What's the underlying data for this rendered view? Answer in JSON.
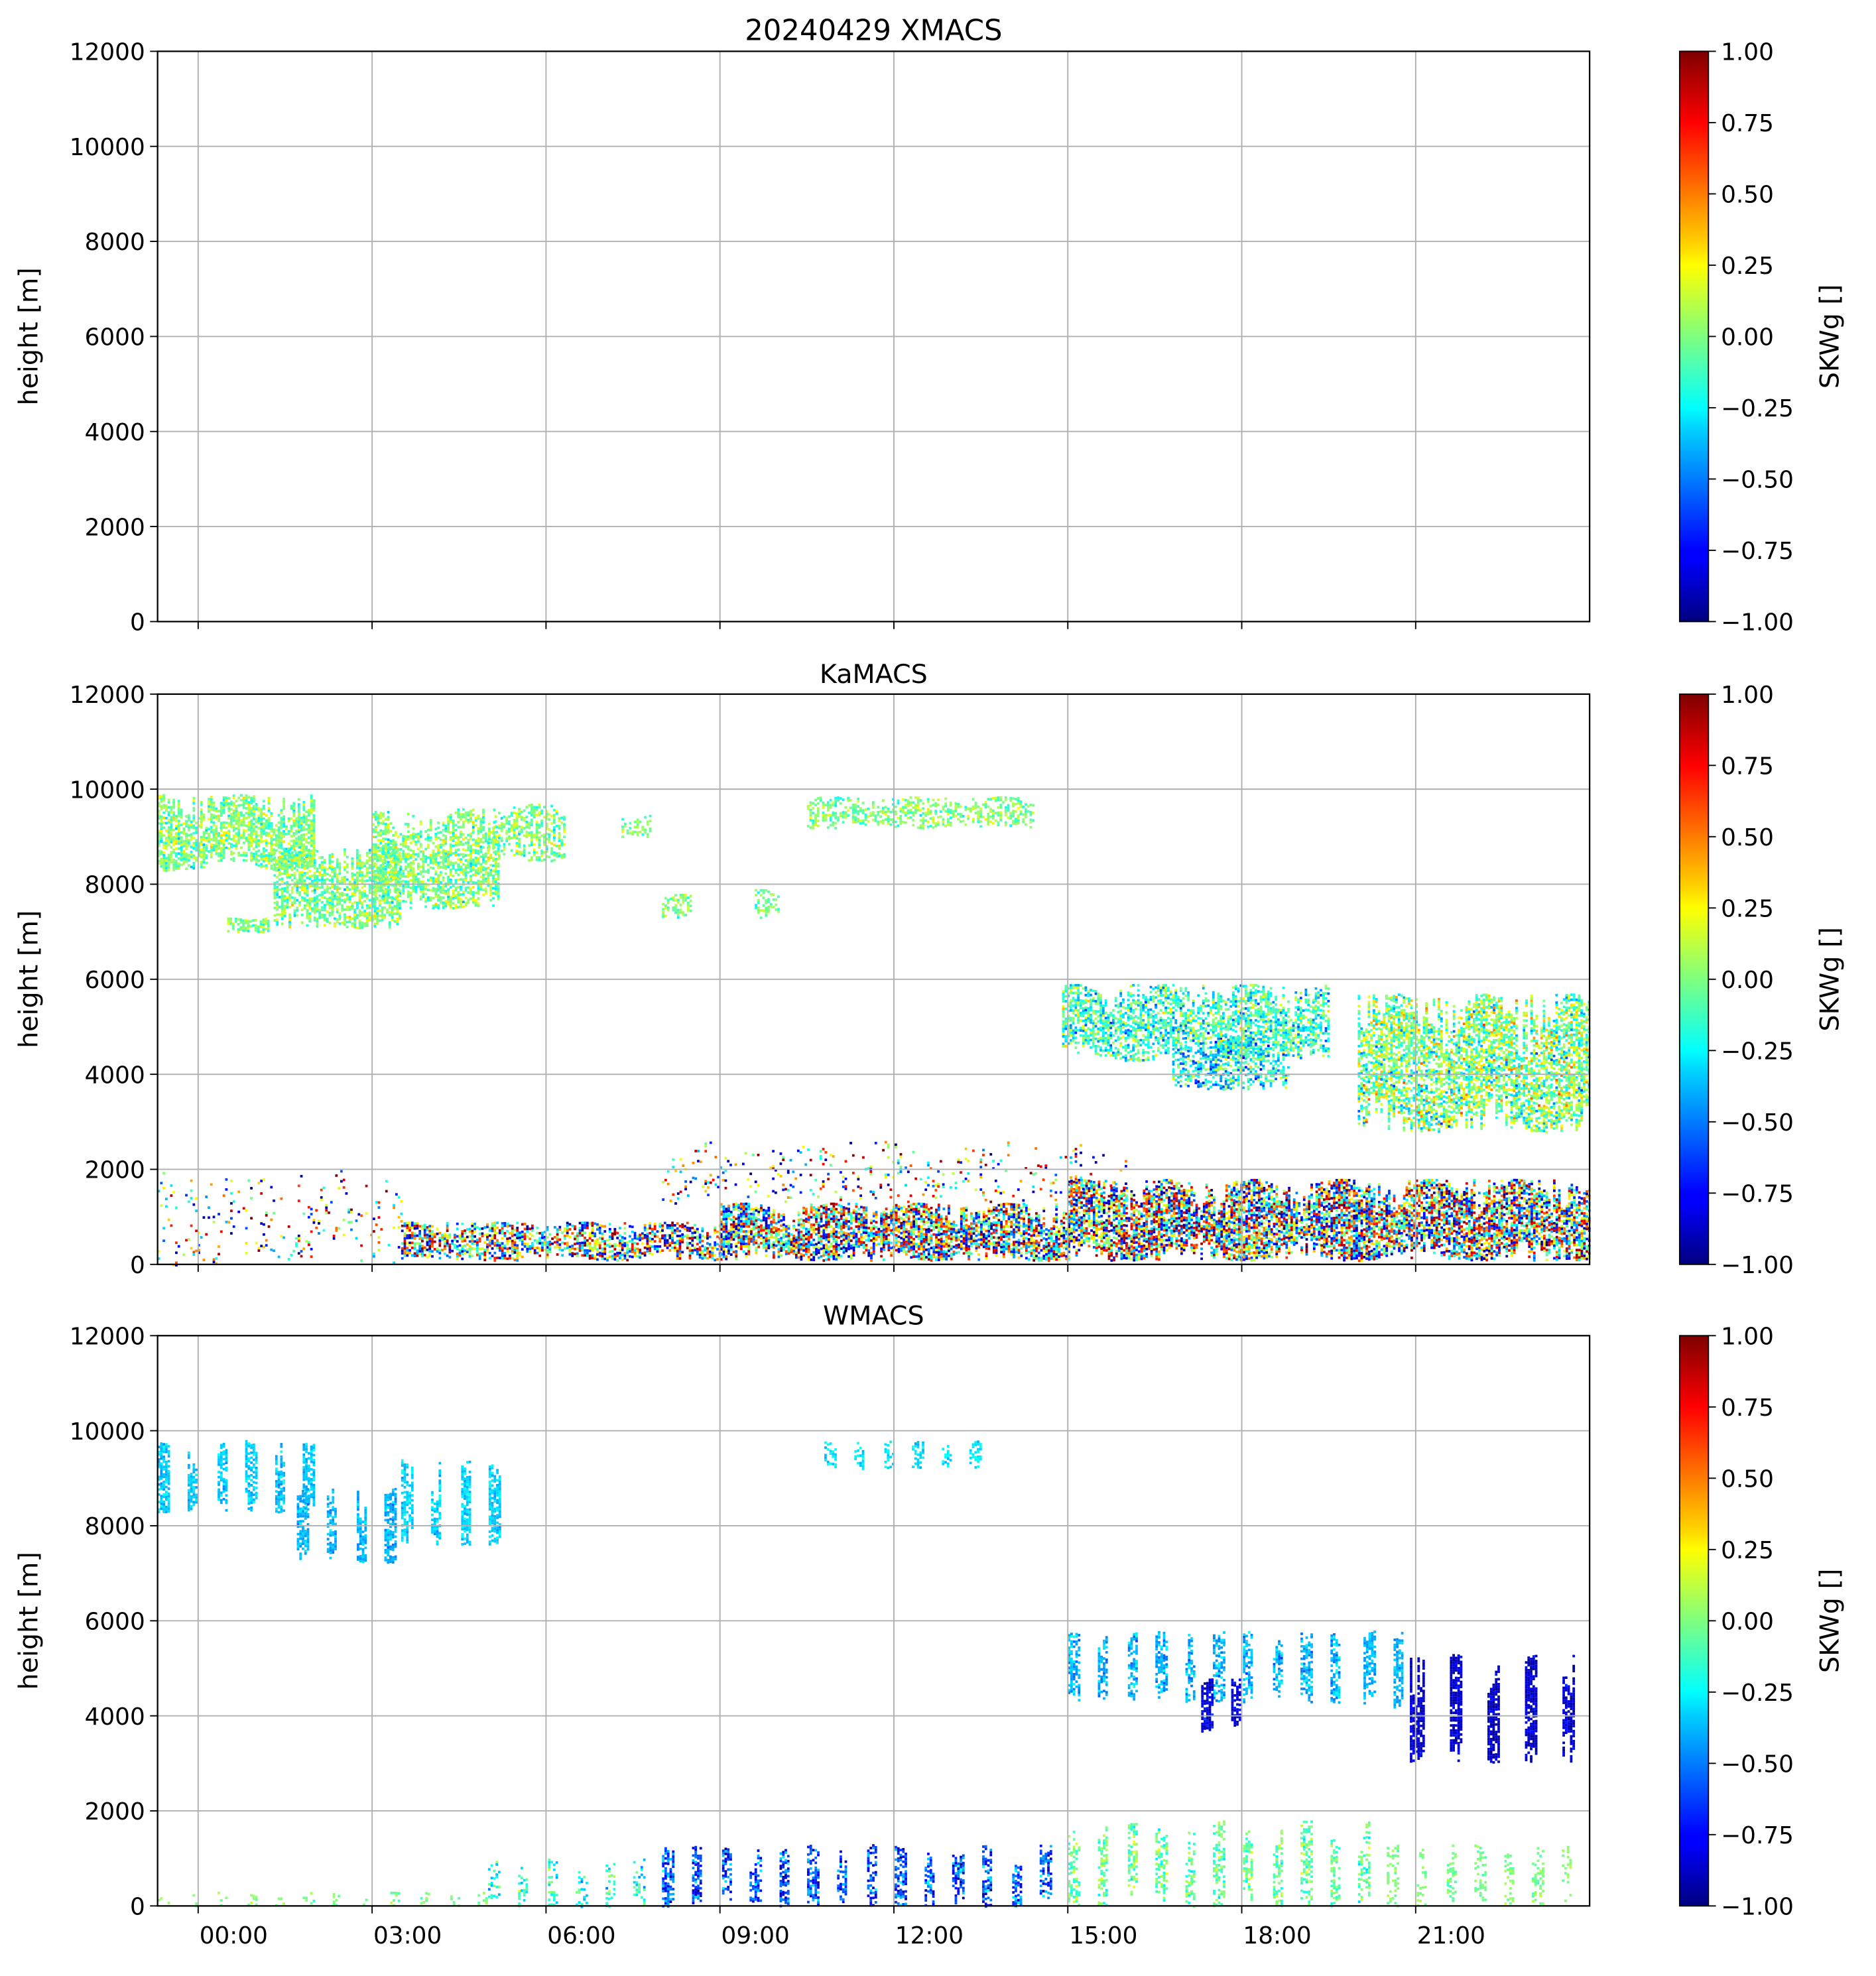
{
  "chart_data": [
    {
      "type": "heatmap",
      "title": "20240429 XMACS",
      "xlabel": "",
      "ylabel": "height [m]",
      "colorbar_label": "SKWg []",
      "xlim_hours": [
        -0.7,
        24
      ],
      "ylim": [
        0,
        12000
      ],
      "yticks": [
        "0",
        "2000",
        "4000",
        "6000",
        "8000",
        "10000",
        "12000"
      ],
      "xticks": [
        "00:00",
        "03:00",
        "06:00",
        "09:00",
        "12:00",
        "15:00",
        "18:00",
        "21:00"
      ],
      "clim": [
        -1,
        1
      ],
      "cticks": [
        "−1.00",
        "−0.75",
        "−0.50",
        "−0.25",
        "0.00",
        "0.25",
        "0.50",
        "0.75",
        "1.00"
      ],
      "grid": true,
      "regions": []
    },
    {
      "type": "heatmap",
      "title": "KaMACS",
      "xlabel": "",
      "ylabel": "height [m]",
      "colorbar_label": "SKWg []",
      "xlim_hours": [
        -0.7,
        24
      ],
      "ylim": [
        0,
        12000
      ],
      "yticks": [
        "0",
        "2000",
        "4000",
        "6000",
        "8000",
        "10000",
        "12000"
      ],
      "xticks": [
        "00:00",
        "03:00",
        "06:00",
        "09:00",
        "12:00",
        "15:00",
        "18:00",
        "21:00"
      ],
      "clim": [
        -1,
        1
      ],
      "cticks": [
        "−1.00",
        "−0.75",
        "−0.50",
        "−0.25",
        "0.00",
        "0.25",
        "0.50",
        "0.75",
        "1.00"
      ],
      "grid": true,
      "regions": [
        {
          "t": [
            -0.7,
            2.0
          ],
          "h": [
            8300,
            9900
          ],
          "mean": 0.0,
          "spread": 0.25,
          "density": 0.7
        },
        {
          "t": [
            0.5,
            1.2
          ],
          "h": [
            7000,
            7300
          ],
          "mean": 0.0,
          "spread": 0.2,
          "density": 0.7
        },
        {
          "t": [
            1.3,
            3.5
          ],
          "h": [
            7100,
            8800
          ],
          "mean": 0.0,
          "spread": 0.25,
          "density": 0.65
        },
        {
          "t": [
            3.0,
            5.2
          ],
          "h": [
            7500,
            9600
          ],
          "mean": 0.0,
          "spread": 0.25,
          "density": 0.6
        },
        {
          "t": [
            5.0,
            6.3
          ],
          "h": [
            8500,
            9700
          ],
          "mean": 0.0,
          "spread": 0.25,
          "density": 0.45
        },
        {
          "t": [
            7.3,
            7.8
          ],
          "h": [
            9000,
            9500
          ],
          "mean": 0.0,
          "spread": 0.2,
          "density": 0.3
        },
        {
          "t": [
            8.0,
            8.5
          ],
          "h": [
            7300,
            7800
          ],
          "mean": 0.0,
          "spread": 0.2,
          "density": 0.5
        },
        {
          "t": [
            9.6,
            10.0
          ],
          "h": [
            7300,
            7900
          ],
          "mean": 0.0,
          "spread": 0.2,
          "density": 0.5
        },
        {
          "t": [
            10.5,
            14.4
          ],
          "h": [
            9200,
            9850
          ],
          "mean": 0.0,
          "spread": 0.2,
          "density": 0.45
        },
        {
          "t": [
            14.9,
            19.5
          ],
          "h": [
            4300,
            5900
          ],
          "mean": -0.15,
          "spread": 0.35,
          "density": 0.6
        },
        {
          "t": [
            16.8,
            18.8
          ],
          "h": [
            3700,
            4800
          ],
          "mean": -0.25,
          "spread": 0.4,
          "density": 0.55
        },
        {
          "t": [
            20.0,
            24.0
          ],
          "h": [
            2800,
            5700
          ],
          "mean": 0.0,
          "spread": 0.4,
          "density": 0.65
        },
        {
          "t": [
            -0.7,
            3.5
          ],
          "h": [
            0,
            2000
          ],
          "mean": 0.0,
          "spread": 1.0,
          "density": 0.06
        },
        {
          "t": [
            3.5,
            9.0
          ],
          "h": [
            100,
            900
          ],
          "mean": 0.0,
          "spread": 1.0,
          "density": 0.6
        },
        {
          "t": [
            9.0,
            15.0
          ],
          "h": [
            100,
            1300
          ],
          "mean": 0.0,
          "spread": 1.0,
          "density": 0.75
        },
        {
          "t": [
            15.0,
            24.0
          ],
          "h": [
            100,
            1800
          ],
          "mean": 0.0,
          "spread": 1.0,
          "density": 0.75
        },
        {
          "t": [
            8.0,
            16.0
          ],
          "h": [
            1300,
            2600
          ],
          "mean": 0.0,
          "spread": 1.0,
          "density": 0.08
        }
      ]
    },
    {
      "type": "heatmap",
      "title": "WMACS",
      "xlabel": "",
      "ylabel": "height [m]",
      "colorbar_label": "SKWg []",
      "xlim_hours": [
        -0.7,
        24
      ],
      "ylim": [
        0,
        12000
      ],
      "yticks": [
        "0",
        "2000",
        "4000",
        "6000",
        "8000",
        "10000",
        "12000"
      ],
      "xticks": [
        "00:00",
        "03:00",
        "06:00",
        "09:00",
        "12:00",
        "15:00",
        "18:00",
        "21:00"
      ],
      "clim": [
        -1,
        1
      ],
      "cticks": [
        "−1.00",
        "−0.75",
        "−0.50",
        "−0.25",
        "0.00",
        "0.25",
        "0.50",
        "0.75",
        "1.00"
      ],
      "grid": true,
      "regions": [
        {
          "t": [
            -0.7,
            2.0
          ],
          "h": [
            8300,
            9800
          ],
          "mean": -0.35,
          "spread": 0.1,
          "density": 0.7,
          "stripes": 0.5
        },
        {
          "t": [
            1.7,
            3.5
          ],
          "h": [
            7200,
            8800
          ],
          "mean": -0.4,
          "spread": 0.1,
          "density": 0.7,
          "stripes": 0.5
        },
        {
          "t": [
            3.5,
            5.5
          ],
          "h": [
            7600,
            9400
          ],
          "mean": -0.33,
          "spread": 0.1,
          "density": 0.7,
          "stripes": 0.5
        },
        {
          "t": [
            10.8,
            13.5
          ],
          "h": [
            9200,
            9800
          ],
          "mean": -0.3,
          "spread": 0.1,
          "density": 0.5,
          "stripes": 0.5
        },
        {
          "t": [
            15.0,
            20.0
          ],
          "h": [
            4300,
            5800
          ],
          "mean": -0.4,
          "spread": 0.15,
          "density": 0.6,
          "stripes": 0.5
        },
        {
          "t": [
            17.3,
            18.2
          ],
          "h": [
            3700,
            4800
          ],
          "mean": -0.8,
          "spread": 0.15,
          "density": 0.7,
          "stripes": 0.5
        },
        {
          "t": [
            20.1,
            20.8
          ],
          "h": [
            4200,
            5800
          ],
          "mean": -0.4,
          "spread": 0.1,
          "density": 0.6,
          "stripes": 0.5
        },
        {
          "t": [
            20.9,
            23.8
          ],
          "h": [
            3000,
            5300
          ],
          "mean": -0.85,
          "spread": 0.12,
          "density": 0.8,
          "stripes": 0.65
        },
        {
          "t": [
            -0.7,
            5.0
          ],
          "h": [
            0,
            300
          ],
          "mean": 0.0,
          "spread": 0.1,
          "density": 0.25,
          "stripes": 0.5
        },
        {
          "t": [
            5.0,
            8.0
          ],
          "h": [
            0,
            1000
          ],
          "mean": -0.2,
          "spread": 0.25,
          "density": 0.35,
          "stripes": 0.5
        },
        {
          "t": [
            8.0,
            15.0
          ],
          "h": [
            0,
            1300
          ],
          "mean": -0.6,
          "spread": 0.3,
          "density": 0.6,
          "stripes": 0.5
        },
        {
          "t": [
            15.0,
            20.5
          ],
          "h": [
            0,
            1800
          ],
          "mean": -0.05,
          "spread": 0.2,
          "density": 0.45,
          "stripes": 0.5
        },
        {
          "t": [
            20.5,
            23.8
          ],
          "h": [
            0,
            1300
          ],
          "mean": 0.0,
          "spread": 0.1,
          "density": 0.35,
          "stripes": 0.5
        }
      ]
    }
  ]
}
